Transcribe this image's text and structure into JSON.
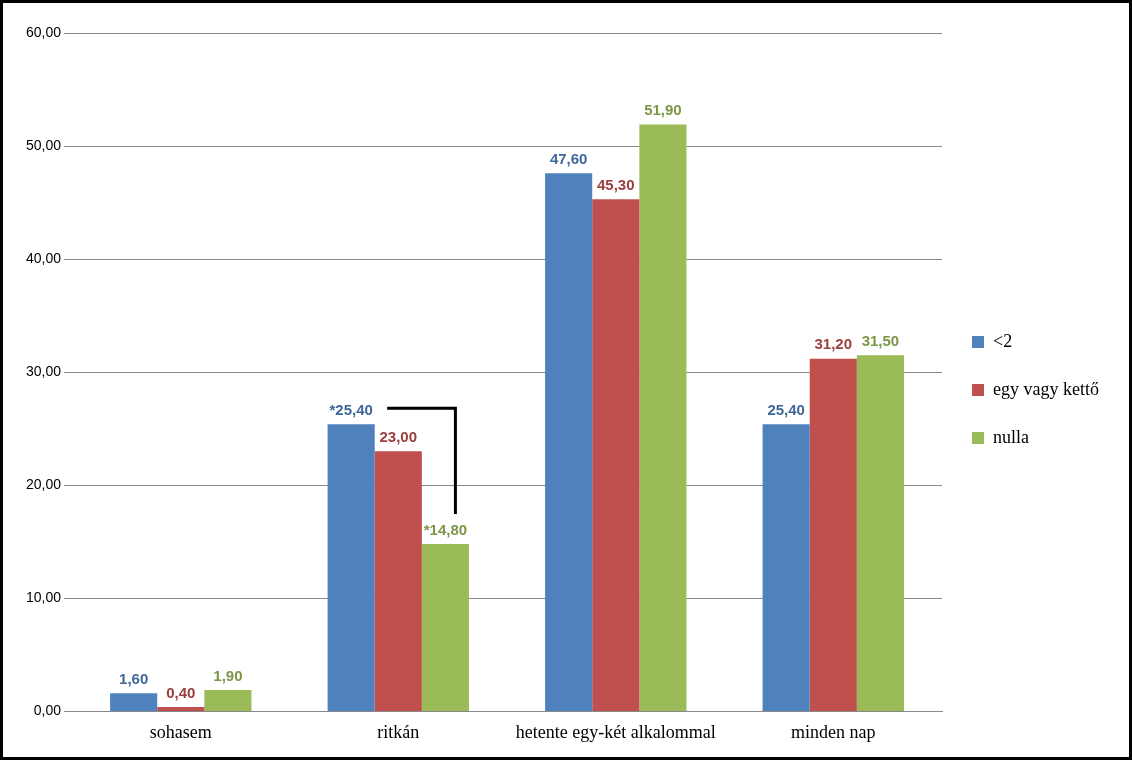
{
  "chart_data": {
    "type": "bar",
    "categories": [
      "sohasem",
      "ritkán",
      "hetente egy-két alkalommal",
      "minden nap"
    ],
    "series": [
      {
        "name": "<2",
        "color": "#4f81bd",
        "values": [
          1.6,
          25.4,
          47.6,
          25.4
        ],
        "value_labels": [
          "1,60",
          "*25,40",
          "47,60",
          "25,40"
        ]
      },
      {
        "name": "egy vagy kettő",
        "color": "#c0504d",
        "values": [
          0.4,
          23.0,
          45.3,
          31.2
        ],
        "value_labels": [
          "0,40",
          "23,00",
          "45,30",
          "31,20"
        ]
      },
      {
        "name": "nulla",
        "color": "#9bbb59",
        "values": [
          1.9,
          14.8,
          51.9,
          31.5
        ],
        "value_labels": [
          "1,90",
          "*14,80",
          "51,90",
          "31,50"
        ]
      }
    ],
    "ylim": [
      0,
      60
    ],
    "yticks": [
      {
        "value": 0,
        "label": "0,00"
      },
      {
        "value": 10,
        "label": "10,00"
      },
      {
        "value": 20,
        "label": "20,00"
      },
      {
        "value": 30,
        "label": "30,00"
      },
      {
        "value": 40,
        "label": "40,00"
      },
      {
        "value": 50,
        "label": "50,00"
      },
      {
        "value": 60,
        "label": "60,00"
      }
    ],
    "grid": "y",
    "legend": "right"
  }
}
